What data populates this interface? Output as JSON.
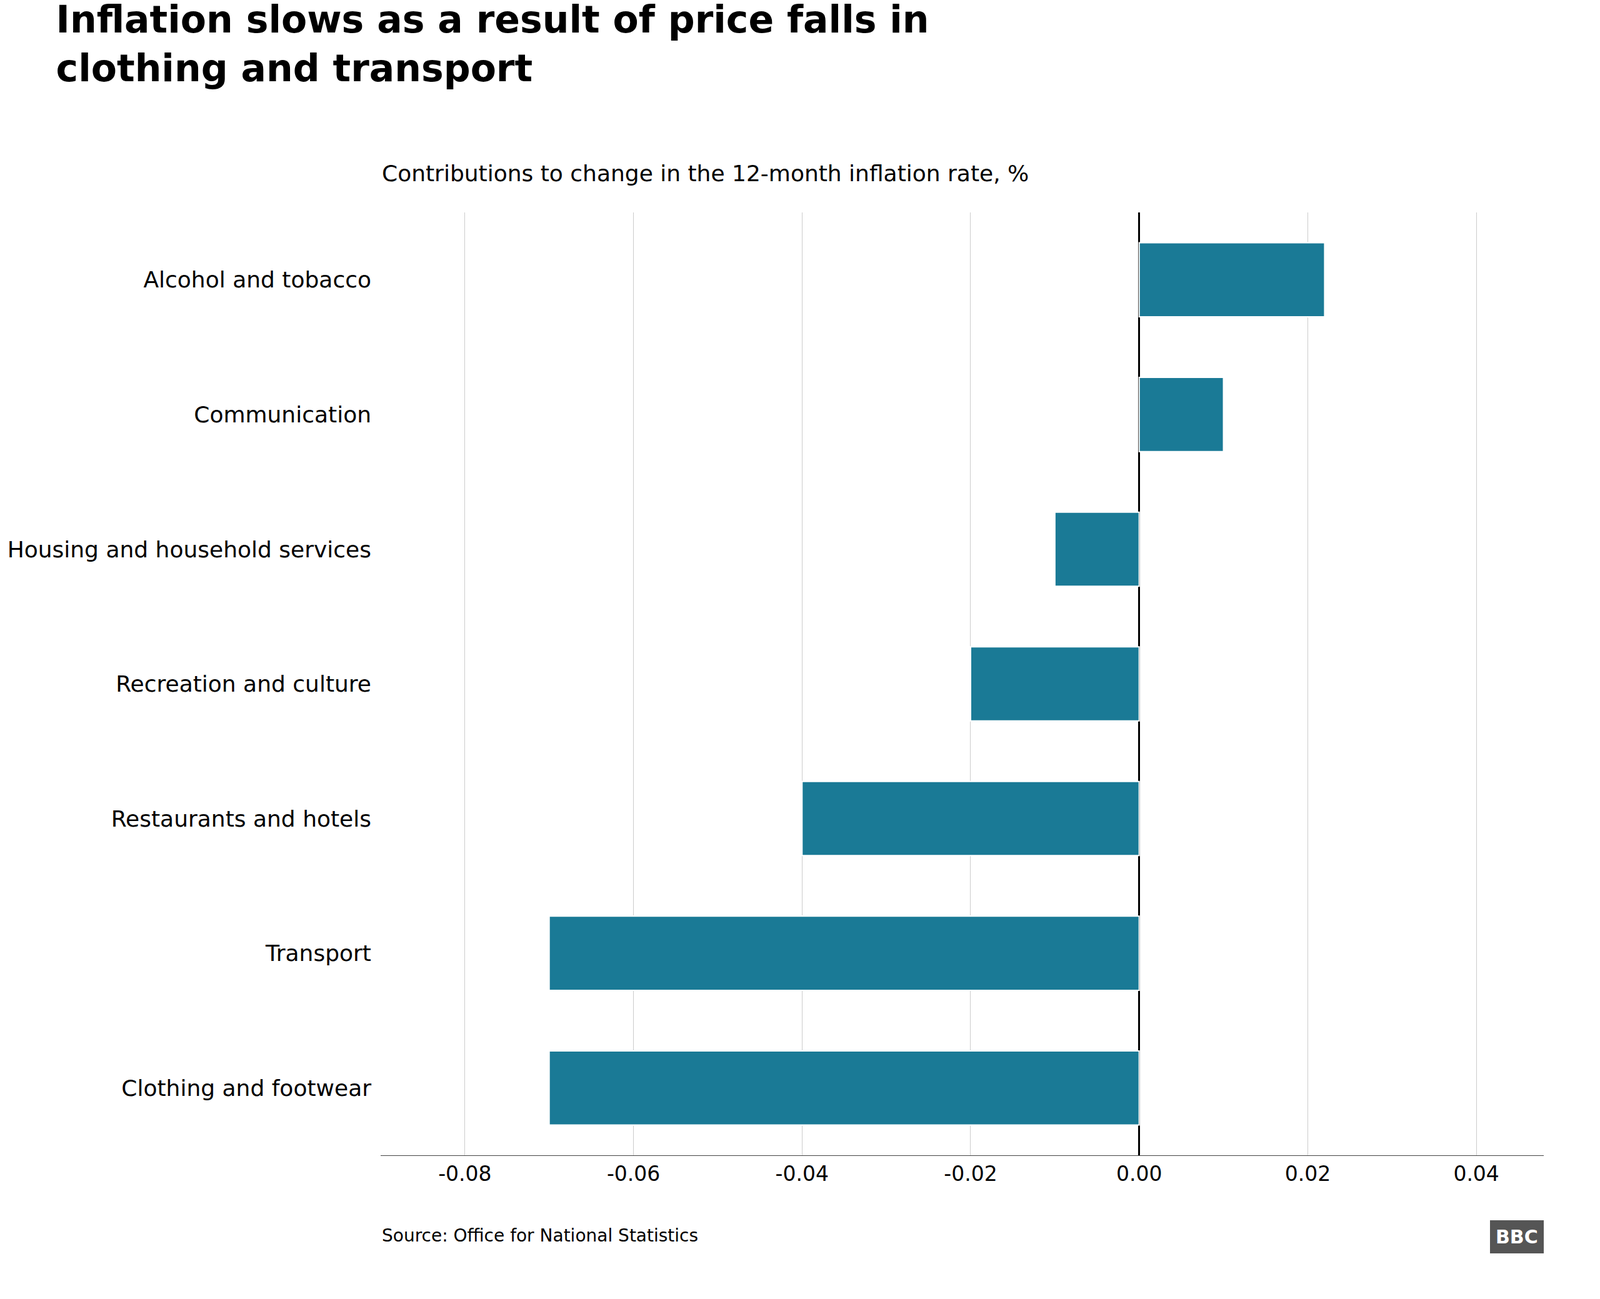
{
  "chart_data": {
    "type": "bar",
    "orientation": "horizontal",
    "title": "Inflation slows as a result of price falls in\nclothing and transport",
    "subtitle": "Contributions to change in the 12-month inflation rate, %",
    "annotations": [
      "Source: Office for National Statistics",
      "BBC"
    ],
    "categories": [
      "Clothing and footwear",
      "Transport",
      "Restaurants and hotels",
      "Recreation and culture",
      "Housing and household services",
      "Communication",
      "Alcohol and tobacco"
    ],
    "values": [
      -0.07,
      -0.07,
      -0.04,
      -0.02,
      -0.01,
      0.01,
      0.022
    ],
    "color": "#1a7a96",
    "xlim": [
      -0.09,
      0.048
    ],
    "xticks": [
      -0.08,
      -0.06,
      -0.04,
      -0.02,
      {
        "value": 0.0,
        "label": "0.00"
      },
      0.02,
      0.04
    ],
    "grid": true
  }
}
